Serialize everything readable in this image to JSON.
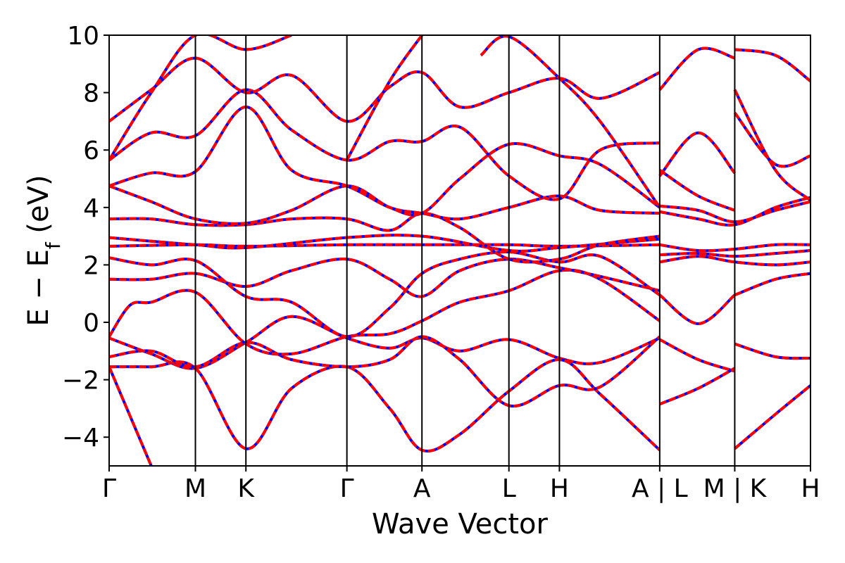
{
  "chart_data": {
    "type": "line",
    "title": "",
    "xlabel": "Wave Vector",
    "ylabel_main": "E − E",
    "ylabel_sub": "f",
    "ylabel_unit": " (eV)",
    "ylim": [
      -5,
      10
    ],
    "yticks": [
      {
        "value": -4,
        "label": "−4"
      },
      {
        "value": -2,
        "label": "−2"
      },
      {
        "value": 0,
        "label": "0"
      },
      {
        "value": 2,
        "label": "2"
      },
      {
        "value": 4,
        "label": "4"
      },
      {
        "value": 6,
        "label": "6"
      },
      {
        "value": 8,
        "label": "8"
      },
      {
        "value": 10,
        "label": "10"
      }
    ],
    "xlim": [
      0,
      1
    ],
    "kpoints": [
      {
        "x": 0.0,
        "label": "Γ"
      },
      {
        "x": 0.123,
        "label": "M"
      },
      {
        "x": 0.195,
        "label": "K"
      },
      {
        "x": 0.339,
        "label": "Γ"
      },
      {
        "x": 0.446,
        "label": "A"
      },
      {
        "x": 0.57,
        "label": "L"
      },
      {
        "x": 0.642,
        "label": "H"
      },
      {
        "x": 0.785,
        "label": "A | L"
      },
      {
        "x": 0.892,
        "label": "M | K"
      },
      {
        "x": 1.0,
        "label": "H"
      }
    ],
    "grid": false,
    "legend": "none",
    "colors": {
      "band_primary": "#0000ff",
      "band_overlay": "#ff0000",
      "kline": "#000000"
    },
    "series": [
      {
        "values": [
          [
            0,
            -0.55
          ],
          [
            0.06,
            -1.1
          ],
          [
            0.123,
            -1.6
          ],
          [
            0.195,
            -0.7
          ],
          [
            0.26,
            0.2
          ],
          [
            0.339,
            -0.55
          ],
          [
            0.4,
            -0.9
          ],
          [
            0.446,
            -0.55
          ],
          [
            0.5,
            -1.0
          ],
          [
            0.57,
            -0.6
          ],
          [
            0.642,
            -1.25
          ],
          [
            0.7,
            -1.4
          ],
          [
            0.785,
            -0.55
          ]
        ]
      },
      {
        "values": [
          [
            0.785,
            -0.6
          ],
          [
            0.84,
            -1.3
          ],
          [
            0.892,
            -1.7
          ]
        ]
      },
      {
        "values": [
          [
            0.892,
            -0.75
          ],
          [
            0.95,
            -1.2
          ],
          [
            1.0,
            -1.25
          ]
        ]
      },
      {
        "values": [
          [
            0,
            -1.55
          ],
          [
            0.06,
            -1.55
          ],
          [
            0.123,
            -1.6
          ],
          [
            0.195,
            -4.4
          ],
          [
            0.26,
            -2.3
          ],
          [
            0.339,
            -1.55
          ],
          [
            0.4,
            -3.0
          ],
          [
            0.446,
            -4.45
          ],
          [
            0.5,
            -3.9
          ],
          [
            0.57,
            -2.4
          ],
          [
            0.642,
            -1.3
          ],
          [
            0.7,
            -2.5
          ],
          [
            0.785,
            -4.45
          ]
        ]
      },
      {
        "values": [
          [
            0.785,
            -2.85
          ],
          [
            0.84,
            -2.3
          ],
          [
            0.892,
            -1.6
          ]
        ]
      },
      {
        "values": [
          [
            0.892,
            -4.4
          ],
          [
            0.95,
            -3.2
          ],
          [
            1.0,
            -2.2
          ]
        ]
      },
      {
        "values": [
          [
            0,
            -1.2
          ],
          [
            0.06,
            -1.0
          ],
          [
            0.123,
            -1.55
          ],
          [
            0.195,
            -0.7
          ],
          [
            0.26,
            -1.3
          ],
          [
            0.339,
            -1.55
          ],
          [
            0.4,
            -1.3
          ],
          [
            0.446,
            -0.5
          ],
          [
            0.5,
            -1.3
          ],
          [
            0.57,
            -2.9
          ],
          [
            0.642,
            -2.2
          ],
          [
            0.7,
            -2.25
          ],
          [
            0.785,
            -0.5
          ]
        ]
      },
      {
        "values": [
          [
            0,
            -1.55
          ],
          [
            0.06,
            -5.0
          ]
        ]
      },
      {
        "values": [
          [
            0,
            -0.5
          ],
          [
            0.03,
            0.6
          ],
          [
            0.06,
            0.7
          ],
          [
            0.123,
            1.05
          ],
          [
            0.195,
            -0.75
          ],
          [
            0.26,
            -1.1
          ],
          [
            0.339,
            -0.5
          ],
          [
            0.4,
            -0.4
          ],
          [
            0.446,
            0.05
          ],
          [
            0.5,
            0.7
          ],
          [
            0.57,
            1.1
          ],
          [
            0.642,
            1.8
          ],
          [
            0.7,
            1.5
          ],
          [
            0.785,
            0.05
          ]
        ]
      },
      {
        "values": [
          [
            0.785,
            0.95
          ],
          [
            0.84,
            -0.05
          ],
          [
            0.892,
            0.95
          ]
        ]
      },
      {
        "values": [
          [
            0.892,
            0.95
          ],
          [
            0.95,
            1.5
          ],
          [
            1.0,
            1.7
          ]
        ]
      },
      {
        "values": [
          [
            0,
            1.5
          ],
          [
            0.06,
            1.5
          ],
          [
            0.123,
            1.7
          ],
          [
            0.195,
            1.25
          ],
          [
            0.26,
            1.8
          ],
          [
            0.339,
            2.2
          ],
          [
            0.4,
            1.5
          ],
          [
            0.446,
            0.9
          ],
          [
            0.5,
            1.8
          ],
          [
            0.57,
            2.2
          ],
          [
            0.642,
            1.9
          ],
          [
            0.7,
            1.6
          ],
          [
            0.785,
            1.1
          ]
        ]
      },
      {
        "values": [
          [
            0,
            2.25
          ],
          [
            0.06,
            2.0
          ],
          [
            0.123,
            2.15
          ],
          [
            0.195,
            0.9
          ],
          [
            0.26,
            0.7
          ],
          [
            0.339,
            -0.5
          ],
          [
            0.4,
            0.5
          ],
          [
            0.446,
            1.7
          ],
          [
            0.5,
            2.2
          ],
          [
            0.57,
            2.45
          ],
          [
            0.642,
            2.1
          ],
          [
            0.7,
            2.3
          ],
          [
            0.785,
            0.95
          ]
        ]
      },
      {
        "values": [
          [
            0,
            2.65
          ],
          [
            0.123,
            2.7
          ],
          [
            0.195,
            2.65
          ],
          [
            0.339,
            2.7
          ],
          [
            0.446,
            2.7
          ],
          [
            0.57,
            2.7
          ],
          [
            0.642,
            2.65
          ],
          [
            0.785,
            2.7
          ]
        ]
      },
      {
        "values": [
          [
            0,
            2.95
          ],
          [
            0.123,
            2.7
          ],
          [
            0.195,
            2.6
          ],
          [
            0.339,
            2.95
          ],
          [
            0.446,
            3.0
          ],
          [
            0.57,
            2.5
          ],
          [
            0.642,
            2.6
          ],
          [
            0.785,
            2.9
          ]
        ]
      },
      {
        "values": [
          [
            0.785,
            2.7
          ],
          [
            0.84,
            2.5
          ],
          [
            0.892,
            2.55
          ],
          [
            0.95,
            2.7
          ],
          [
            1.0,
            2.7
          ]
        ]
      },
      {
        "values": [
          [
            0.785,
            2.35
          ],
          [
            0.84,
            2.4
          ],
          [
            0.892,
            2.3
          ],
          [
            0.95,
            2.4
          ],
          [
            1.0,
            2.5
          ]
        ]
      },
      {
        "values": [
          [
            0.785,
            2.1
          ],
          [
            0.84,
            2.3
          ],
          [
            0.892,
            2.1
          ],
          [
            0.95,
            2.0
          ],
          [
            1.0,
            2.1
          ]
        ]
      },
      {
        "values": [
          [
            0,
            3.6
          ],
          [
            0.06,
            3.6
          ],
          [
            0.123,
            3.4
          ],
          [
            0.195,
            3.4
          ],
          [
            0.26,
            3.6
          ],
          [
            0.339,
            3.6
          ],
          [
            0.4,
            3.2
          ],
          [
            0.446,
            3.8
          ],
          [
            0.5,
            3.3
          ],
          [
            0.57,
            2.2
          ],
          [
            0.642,
            2.2
          ],
          [
            0.7,
            2.7
          ],
          [
            0.785,
            3.0
          ]
        ]
      },
      {
        "values": [
          [
            0,
            4.75
          ],
          [
            0.06,
            4.2
          ],
          [
            0.123,
            3.6
          ],
          [
            0.195,
            3.45
          ],
          [
            0.26,
            3.9
          ],
          [
            0.339,
            4.75
          ],
          [
            0.4,
            4.0
          ],
          [
            0.446,
            3.8
          ],
          [
            0.5,
            3.6
          ],
          [
            0.57,
            4.0
          ],
          [
            0.642,
            4.4
          ],
          [
            0.7,
            3.9
          ],
          [
            0.785,
            3.8
          ]
        ]
      },
      {
        "values": [
          [
            0.785,
            3.85
          ],
          [
            0.84,
            3.6
          ],
          [
            0.892,
            3.4
          ],
          [
            0.95,
            4.0
          ],
          [
            1.0,
            4.35
          ]
        ]
      },
      {
        "values": [
          [
            0.785,
            4.05
          ],
          [
            0.84,
            3.9
          ],
          [
            0.892,
            3.5
          ],
          [
            0.95,
            3.9
          ],
          [
            1.0,
            4.2
          ]
        ]
      },
      {
        "values": [
          [
            0,
            4.75
          ],
          [
            0.06,
            5.2
          ],
          [
            0.123,
            5.25
          ],
          [
            0.195,
            7.5
          ],
          [
            0.26,
            5.3
          ],
          [
            0.339,
            4.75
          ],
          [
            0.4,
            4.0
          ],
          [
            0.446,
            3.8
          ],
          [
            0.5,
            5.0
          ],
          [
            0.57,
            6.2
          ],
          [
            0.642,
            5.8
          ],
          [
            0.7,
            5.5
          ],
          [
            0.785,
            4.0
          ]
        ]
      },
      {
        "values": [
          [
            0.785,
            5.1
          ],
          [
            0.84,
            6.6
          ],
          [
            0.892,
            5.2
          ]
        ]
      },
      {
        "values": [
          [
            0.892,
            7.3
          ],
          [
            0.95,
            5.5
          ],
          [
            1.0,
            5.8
          ]
        ]
      },
      {
        "values": [
          [
            0,
            5.65
          ],
          [
            0.06,
            6.6
          ],
          [
            0.123,
            6.5
          ],
          [
            0.195,
            8.1
          ],
          [
            0.26,
            6.7
          ],
          [
            0.339,
            5.65
          ],
          [
            0.4,
            6.3
          ],
          [
            0.446,
            6.3
          ],
          [
            0.5,
            6.8
          ],
          [
            0.57,
            5.1
          ],
          [
            0.642,
            4.3
          ],
          [
            0.7,
            6.0
          ],
          [
            0.785,
            6.25
          ]
        ]
      },
      {
        "values": [
          [
            0.785,
            5.3
          ],
          [
            0.84,
            4.4
          ],
          [
            0.892,
            3.9
          ]
        ]
      },
      {
        "values": [
          [
            0.892,
            8.1
          ],
          [
            0.95,
            5.3
          ],
          [
            1.0,
            4.25
          ]
        ]
      },
      {
        "values": [
          [
            0,
            7.0
          ],
          [
            0.06,
            8.1
          ],
          [
            0.123,
            9.2
          ],
          [
            0.195,
            8.0
          ],
          [
            0.26,
            8.6
          ],
          [
            0.339,
            7.0
          ],
          [
            0.4,
            8.2
          ],
          [
            0.446,
            8.7
          ],
          [
            0.5,
            7.5
          ],
          [
            0.57,
            8.0
          ],
          [
            0.642,
            8.5
          ],
          [
            0.7,
            7.8
          ],
          [
            0.785,
            8.7
          ]
        ]
      },
      {
        "values": [
          [
            0.785,
            8.1
          ],
          [
            0.84,
            9.5
          ],
          [
            0.892,
            9.2
          ]
        ]
      },
      {
        "values": [
          [
            0.892,
            9.5
          ],
          [
            0.95,
            9.3
          ],
          [
            1.0,
            8.4
          ]
        ]
      },
      {
        "values": [
          [
            0,
            5.65
          ],
          [
            0.06,
            8.0
          ],
          [
            0.123,
            10.0
          ],
          [
            0.195,
            9.5
          ],
          [
            0.26,
            10.0
          ]
        ]
      },
      {
        "values": [
          [
            0.339,
            5.65
          ],
          [
            0.4,
            8.4
          ],
          [
            0.446,
            10.0
          ]
        ]
      },
      {
        "values": [
          [
            0.53,
            9.3
          ],
          [
            0.57,
            9.95
          ],
          [
            0.642,
            8.5
          ],
          [
            0.7,
            7.0
          ],
          [
            0.785,
            4.0
          ]
        ]
      }
    ]
  }
}
